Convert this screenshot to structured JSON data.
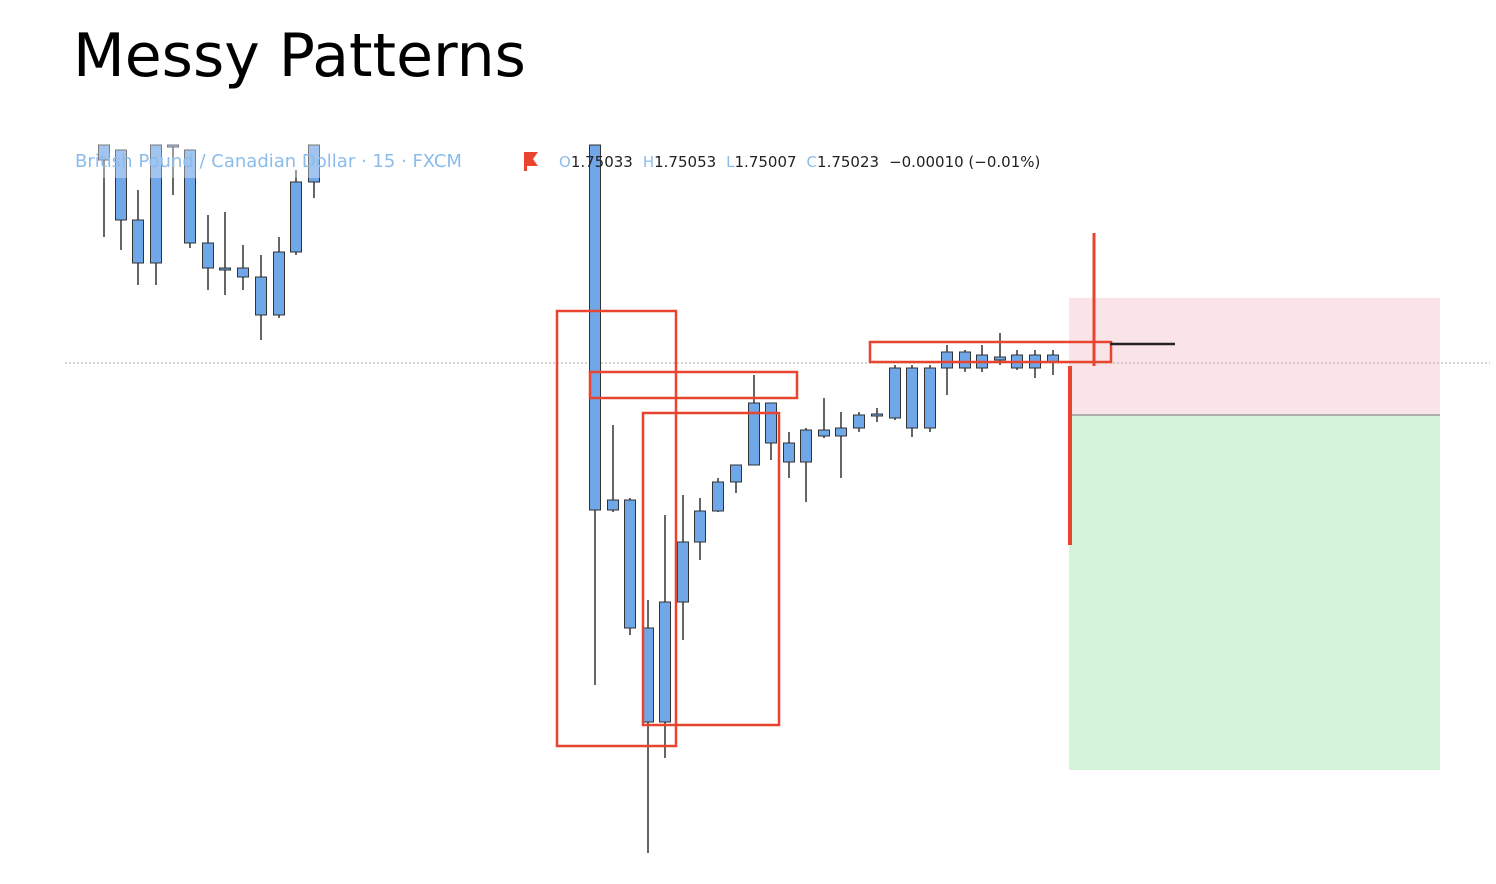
{
  "title": "Messy Patterns",
  "chart_header": {
    "symbol": "British Pound / Canadian Dollar · 15 · FXCM",
    "ohlc": [
      {
        "label": "O",
        "value": "1.75033"
      },
      {
        "label": "H",
        "value": "1.75053"
      },
      {
        "label": "L",
        "value": "1.75007"
      },
      {
        "label": "C",
        "value": "1.75023"
      }
    ],
    "change": "−0.00010 (−0.01%)"
  }
}
